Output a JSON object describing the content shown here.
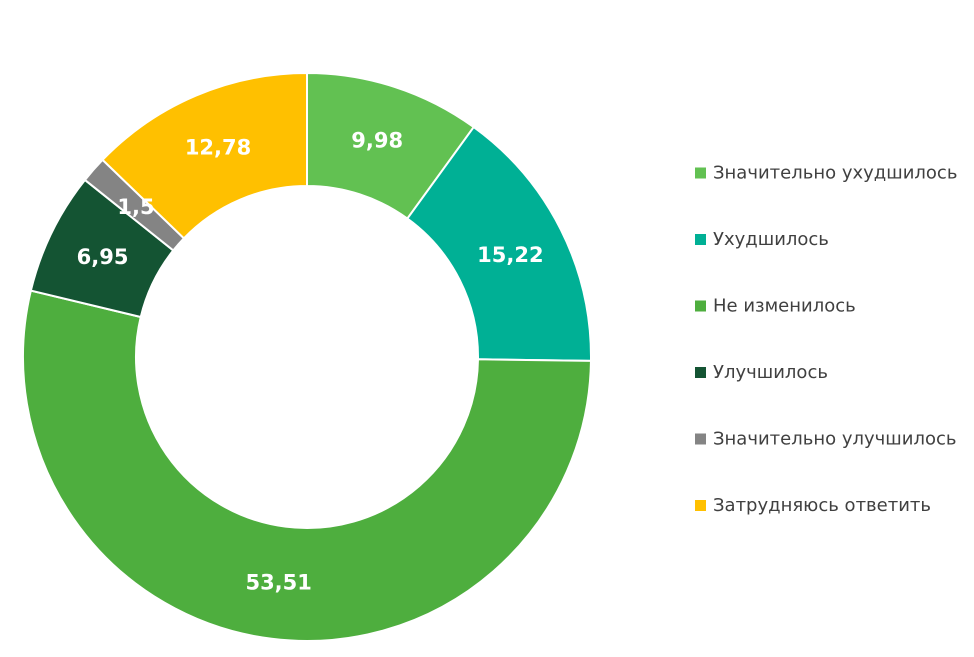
{
  "chart_data": {
    "type": "pie",
    "subtype": "donut",
    "title": "",
    "slices": [
      {
        "label": "Значительно ухудшилось",
        "value": 9.98,
        "display": "9,98",
        "color": "#62C152"
      },
      {
        "label": "Ухудшилось",
        "value": 15.22,
        "display": "15,22",
        "color": "#00B095"
      },
      {
        "label": "Не изменилось",
        "value": 53.51,
        "display": "53,51",
        "color": "#4EAE3E"
      },
      {
        "label": "Улучшилось",
        "value": 6.95,
        "display": "6,95",
        "color": "#145433"
      },
      {
        "label": "Значительно улучшилось",
        "value": 1.5,
        "display": "1,5",
        "color": "#848484"
      },
      {
        "label": "Затрудняюсь ответить",
        "value": 12.78,
        "display": "12,78",
        "color": "#FFC000"
      }
    ],
    "start_angle_deg": 0,
    "direction": "clockwise",
    "legend_position": "right",
    "label_color": "#ffffff",
    "legend_text_color": "#404040",
    "background": "#ffffff"
  }
}
